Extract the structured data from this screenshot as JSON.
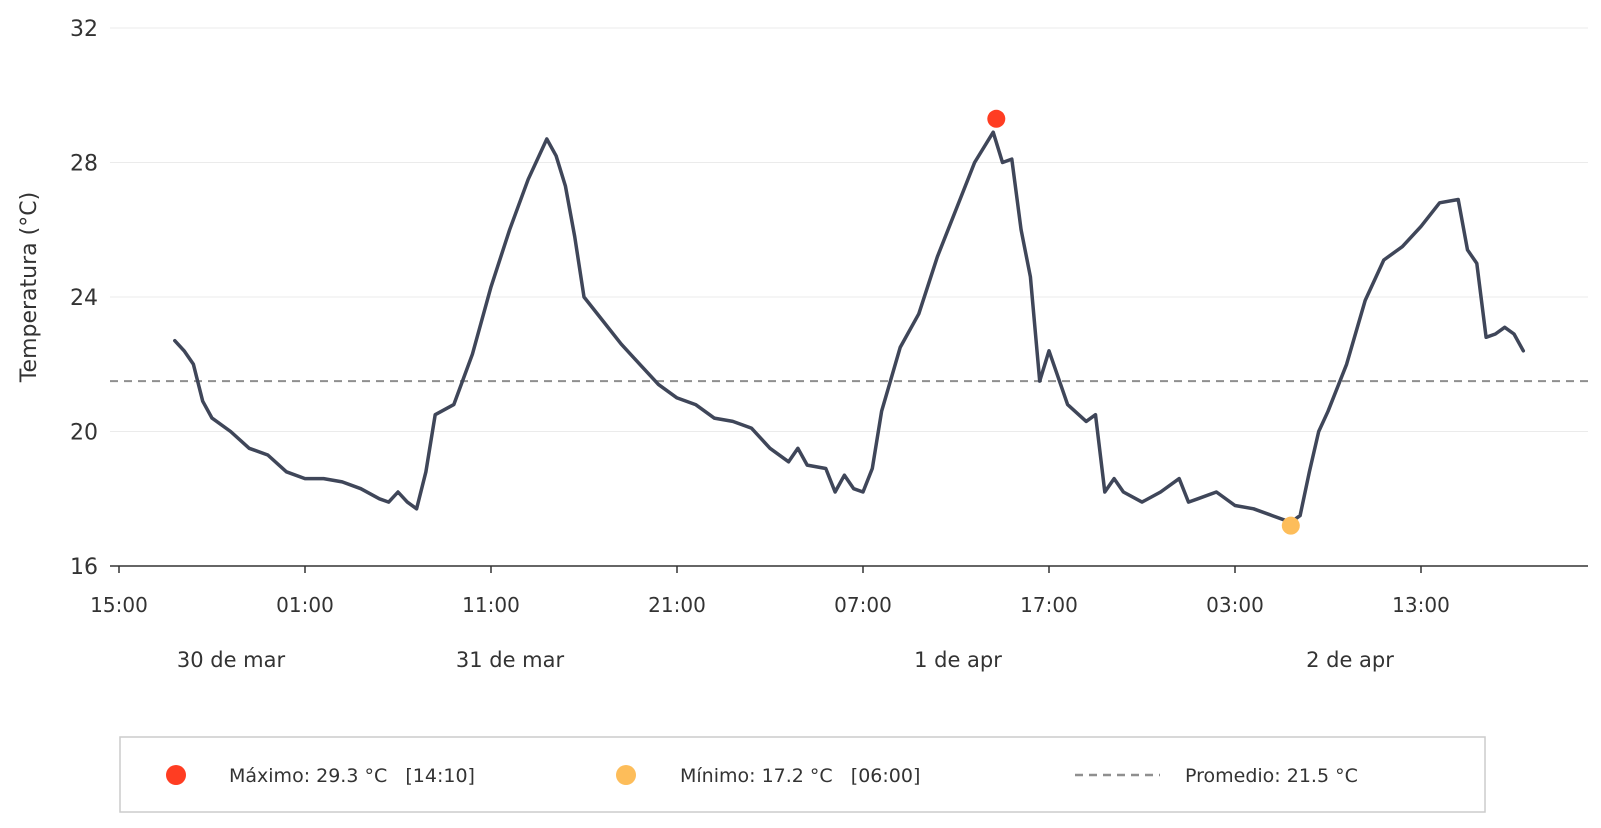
{
  "chart_data": {
    "type": "line",
    "title": "",
    "xlabel": "",
    "ylabel": "Temperatura (°C)",
    "ylim": [
      16,
      32
    ],
    "yticks": [
      16,
      20,
      24,
      28,
      32
    ],
    "xlim": [
      "2024-03-30 15:00",
      "2024-04-02 23:00"
    ],
    "x_tick_labels": [
      "15:00",
      "01:00",
      "11:00",
      "21:00",
      "07:00",
      "17:00",
      "03:00",
      "13:00"
    ],
    "date_labels": [
      "30 de mar",
      "31 de mar",
      "1 de apr",
      "2 de apr"
    ],
    "grid": "horizontal",
    "colors": {
      "line": "#3f4659",
      "max": "#ff3d22",
      "min": "#fdbd5a",
      "mean": "#8f8f8f"
    },
    "series": [
      {
        "points": [
          [
            "03-30 18:00",
            22.7
          ],
          [
            "03-30 18:30",
            22.4
          ],
          [
            "03-30 19:00",
            22.0
          ],
          [
            "03-30 19:30",
            20.9
          ],
          [
            "03-30 20:00",
            20.4
          ],
          [
            "03-30 21:00",
            20.0
          ],
          [
            "03-30 22:00",
            19.5
          ],
          [
            "03-30 23:00",
            19.3
          ],
          [
            "03-31 00:00",
            18.8
          ],
          [
            "03-31 01:00",
            18.6
          ],
          [
            "03-31 02:00",
            18.6
          ],
          [
            "03-31 03:00",
            18.5
          ],
          [
            "03-31 04:00",
            18.3
          ],
          [
            "03-31 05:00",
            18.0
          ],
          [
            "03-31 05:30",
            17.9
          ],
          [
            "03-31 06:00",
            18.2
          ],
          [
            "03-31 06:30",
            17.9
          ],
          [
            "03-31 07:00",
            17.7
          ],
          [
            "03-31 07:30",
            18.8
          ],
          [
            "03-31 08:00",
            20.5
          ],
          [
            "03-31 09:00",
            20.8
          ],
          [
            "03-31 10:00",
            22.3
          ],
          [
            "03-31 11:00",
            24.3
          ],
          [
            "03-31 12:00",
            26.0
          ],
          [
            "03-31 13:00",
            27.5
          ],
          [
            "03-31 14:00",
            28.7
          ],
          [
            "03-31 14:30",
            28.2
          ],
          [
            "03-31 15:00",
            27.3
          ],
          [
            "03-31 15:30",
            25.8
          ],
          [
            "03-31 16:00",
            24.0
          ],
          [
            "03-31 17:00",
            23.3
          ],
          [
            "03-31 18:00",
            22.6
          ],
          [
            "03-31 19:00",
            22.0
          ],
          [
            "03-31 20:00",
            21.4
          ],
          [
            "03-31 21:00",
            21.0
          ],
          [
            "03-31 22:00",
            20.8
          ],
          [
            "03-31 23:00",
            20.4
          ],
          [
            "04-01 00:00",
            20.3
          ],
          [
            "04-01 01:00",
            20.1
          ],
          [
            "04-01 02:00",
            19.5
          ],
          [
            "04-01 03:00",
            19.1
          ],
          [
            "04-01 03:30",
            19.5
          ],
          [
            "04-01 04:00",
            19.0
          ],
          [
            "04-01 05:00",
            18.9
          ],
          [
            "04-01 05:30",
            18.2
          ],
          [
            "04-01 06:00",
            18.7
          ],
          [
            "04-01 06:30",
            18.3
          ],
          [
            "04-01 07:00",
            18.2
          ],
          [
            "04-01 07:30",
            18.9
          ],
          [
            "04-01 08:00",
            20.6
          ],
          [
            "04-01 09:00",
            22.5
          ],
          [
            "04-01 10:00",
            23.5
          ],
          [
            "04-01 11:00",
            25.2
          ],
          [
            "04-01 12:00",
            26.6
          ],
          [
            "04-01 13:00",
            28.0
          ],
          [
            "04-01 14:00",
            28.9
          ],
          [
            "04-01 14:30",
            28.0
          ],
          [
            "04-01 15:00",
            28.1
          ],
          [
            "04-01 15:30",
            26.0
          ],
          [
            "04-01 16:00",
            24.6
          ],
          [
            "04-01 16:30",
            21.5
          ],
          [
            "04-01 17:00",
            22.4
          ],
          [
            "04-01 17:30",
            21.6
          ],
          [
            "04-01 18:00",
            20.8
          ],
          [
            "04-01 19:00",
            20.3
          ],
          [
            "04-01 19:30",
            20.5
          ],
          [
            "04-01 20:00",
            18.2
          ],
          [
            "04-01 20:30",
            18.6
          ],
          [
            "04-01 21:00",
            18.2
          ],
          [
            "04-01 22:00",
            17.9
          ],
          [
            "04-01 23:00",
            18.2
          ],
          [
            "04-02 00:00",
            18.6
          ],
          [
            "04-02 00:30",
            17.9
          ],
          [
            "04-02 01:00",
            18.0
          ],
          [
            "04-02 02:00",
            18.2
          ],
          [
            "04-02 03:00",
            17.8
          ],
          [
            "04-02 04:00",
            17.7
          ],
          [
            "04-02 05:00",
            17.5
          ],
          [
            "04-02 06:00",
            17.3
          ],
          [
            "04-02 06:30",
            17.5
          ],
          [
            "04-02 07:00",
            18.8
          ],
          [
            "04-02 07:30",
            20.0
          ],
          [
            "04-02 08:00",
            20.6
          ],
          [
            "04-02 09:00",
            22.0
          ],
          [
            "04-02 10:00",
            23.9
          ],
          [
            "04-02 11:00",
            25.1
          ],
          [
            "04-02 12:00",
            25.5
          ],
          [
            "04-02 13:00",
            26.1
          ],
          [
            "04-02 14:00",
            26.8
          ],
          [
            "04-02 15:00",
            26.9
          ],
          [
            "04-02 15:30",
            25.4
          ],
          [
            "04-02 16:00",
            25.0
          ],
          [
            "04-02 16:30",
            22.8
          ],
          [
            "04-02 17:00",
            22.9
          ],
          [
            "04-02 17:30",
            23.1
          ],
          [
            "04-02 18:00",
            22.9
          ],
          [
            "04-02 18:30",
            22.4
          ]
        ]
      }
    ],
    "max_point": {
      "x": "04-01 14:10",
      "y": 29.3
    },
    "min_point": {
      "x": "04-02 06:00",
      "y": 17.2
    },
    "mean_line": 21.5
  },
  "legend": {
    "max_label": "Máximo: 29.3 °C   [14:10]",
    "min_label": "Mínimo: 17.2 °C   [06:00]",
    "mean_label": "Promedio: 21.5 °C"
  }
}
